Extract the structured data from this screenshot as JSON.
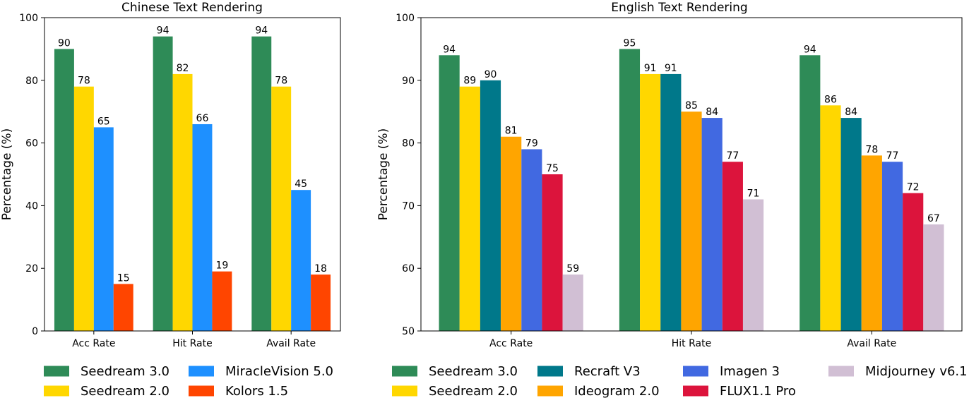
{
  "chart_data": [
    {
      "type": "bar",
      "title": "Chinese Text Rendering",
      "xlabel": "",
      "ylabel": "Percentage (%)",
      "ylim": [
        0,
        100
      ],
      "yticks": [
        "0",
        "20",
        "40",
        "60",
        "80",
        "100"
      ],
      "categories": [
        "Acc Rate",
        "Hit Rate",
        "Avail Rate"
      ],
      "series": [
        {
          "name": "Seedream 3.0",
          "color": "#2e8b57",
          "values": [
            90,
            94,
            94
          ]
        },
        {
          "name": "Seedream 2.0",
          "color": "#ffd700",
          "values": [
            78,
            82,
            78
          ]
        },
        {
          "name": "MiracleVision 5.0",
          "color": "#1e90ff",
          "values": [
            65,
            66,
            45
          ]
        },
        {
          "name": "Kolors 1.5",
          "color": "#ff4500",
          "values": [
            15,
            19,
            18
          ]
        }
      ],
      "grid": false,
      "legend_position": "bottom"
    },
    {
      "type": "bar",
      "title": "English Text Rendering",
      "xlabel": "",
      "ylabel": "Percentage (%)",
      "ylim": [
        50,
        100
      ],
      "yticks": [
        "50",
        "60",
        "70",
        "80",
        "90",
        "100"
      ],
      "categories": [
        "Acc Rate",
        "Hit Rate",
        "Avail Rate"
      ],
      "series": [
        {
          "name": "Seedream 3.0",
          "color": "#2e8b57",
          "values": [
            94,
            95,
            94
          ]
        },
        {
          "name": "Seedream 2.0",
          "color": "#ffd700",
          "values": [
            89,
            91,
            86
          ]
        },
        {
          "name": "Recraft V3",
          "color": "#00788a",
          "values": [
            90,
            91,
            84
          ]
        },
        {
          "name": "Ideogram 2.0",
          "color": "#ffa500",
          "values": [
            81,
            85,
            78
          ]
        },
        {
          "name": "Imagen 3",
          "color": "#4169e1",
          "values": [
            79,
            84,
            77
          ]
        },
        {
          "name": "FLUX1.1 Pro",
          "color": "#dc143c",
          "values": [
            75,
            77,
            72
          ]
        },
        {
          "name": "Midjourney v6.1",
          "color": "#d1bfd4",
          "values": [
            59,
            71,
            67
          ]
        }
      ],
      "grid": false,
      "legend_position": "bottom"
    }
  ]
}
